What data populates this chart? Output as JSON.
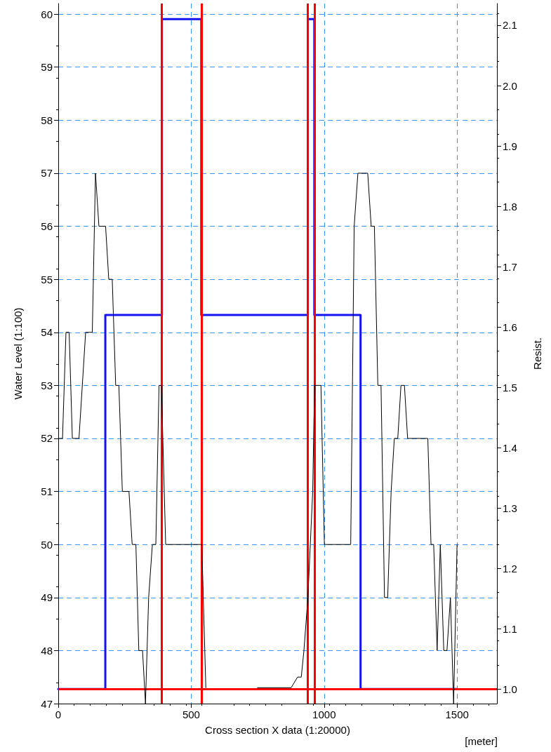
{
  "chart_data": {
    "type": "line",
    "xlabel": "Cross section X data (1:20000)",
    "ylabel": "Water Level (1:100)",
    "y2label": "Resist.",
    "annotations": [
      "[meter]"
    ],
    "xlim": [
      0,
      1650
    ],
    "xticks": [
      0,
      500,
      1000,
      1500
    ],
    "ylim": [
      47,
      60.2
    ],
    "yticks": [
      47,
      48,
      49,
      50,
      51,
      52,
      53,
      54,
      55,
      56,
      57,
      58,
      59,
      60
    ],
    "y2lim": [
      0.976,
      2.136
    ],
    "y2ticks": [
      {
        "value": 1,
        "label": "1.0"
      },
      {
        "value": 1.1,
        "label": "1.1"
      },
      {
        "value": 1.2,
        "label": "1.2"
      },
      {
        "value": 1.3,
        "label": "1.3"
      },
      {
        "value": 1.4,
        "label": "1.4"
      },
      {
        "value": 1.5,
        "label": "1.5"
      },
      {
        "value": 1.6,
        "label": "1.6"
      },
      {
        "value": 1.7,
        "label": "1.7"
      },
      {
        "value": 1.8,
        "label": "1.8"
      },
      {
        "value": 1.9,
        "label": "1.9"
      },
      {
        "value": 2,
        "label": "2.0"
      },
      {
        "value": 2.1,
        "label": "2.1"
      }
    ],
    "grid": true,
    "marker": "none",
    "line_style": "solid",
    "series": [
      {
        "color": "#000000",
        "x": [
          3,
          16,
          29,
          41,
          53,
          78,
          103,
          128,
          140,
          153,
          178,
          190,
          203,
          216,
          228,
          241,
          266,
          278,
          292,
          303,
          317,
          328,
          340,
          354,
          367,
          379,
          388,
          404,
          540,
          555,
          650,
          749,
          876,
          900,
          914,
          924,
          939,
          957,
          964,
          988,
          1001,
          1100,
          1113,
          1127,
          1164,
          1177,
          1189,
          1202,
          1214,
          1227,
          1239,
          1252,
          1264,
          1277,
          1289,
          1302,
          1314,
          1390,
          1402,
          1412,
          1425,
          1437,
          1450,
          1462,
          1475,
          1487,
          1500
        ],
        "values": [
          52,
          52,
          54,
          54,
          52,
          52,
          54,
          54,
          57,
          56,
          56,
          55,
          55,
          53,
          53,
          51,
          51,
          50,
          50,
          48,
          48,
          47,
          49,
          50,
          50,
          53,
          53,
          50,
          50,
          47.3,
          null,
          47.3,
          47.3,
          47.5,
          47.5,
          48,
          49,
          51,
          53,
          53,
          50,
          50,
          56,
          57,
          57,
          56,
          56,
          53,
          53,
          49,
          49,
          51,
          52,
          52,
          53,
          53,
          52,
          52,
          50,
          50,
          48,
          50,
          48,
          48,
          49,
          47,
          50
        ]
      },
      {
        "type": "step",
        "axis": "y2",
        "color": "#1414f0",
        "x": [
          0,
          177,
          390,
          538,
          939,
          963,
          1137,
          1500
        ],
        "values": [
          1.0,
          1.62,
          2.11,
          1.62,
          2.11,
          1.62,
          1.0,
          1.0
        ]
      }
    ],
    "ref_lines": [
      {
        "axis": "x",
        "value": 390,
        "color": "#ff0000"
      },
      {
        "axis": "x",
        "value": 538,
        "color": "#ff0000"
      },
      {
        "axis": "x",
        "value": 939,
        "color": "#ff0000"
      },
      {
        "axis": "x",
        "value": 963,
        "color": "#ff0000"
      },
      {
        "axis": "y2",
        "value": 1.0,
        "color": "#ff0000"
      }
    ]
  }
}
